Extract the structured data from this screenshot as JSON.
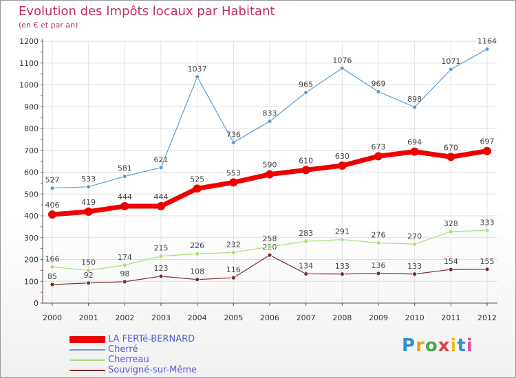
{
  "header": {
    "title": "Evolution des Impôts locaux par Habitant",
    "subtitle": "(en € et par an)"
  },
  "logo": {
    "text": "Proxiti",
    "colors": [
      "#2f8fd8",
      "#e8a020",
      "#4aa84a",
      "#d84040",
      "#e8c020",
      "#2f8fd8",
      "#e04f9a"
    ]
  },
  "chart_data": {
    "type": "line",
    "x": [
      2000,
      2001,
      2002,
      2003,
      2004,
      2005,
      2006,
      2007,
      2008,
      2009,
      2010,
      2011,
      2012
    ],
    "ylim": [
      0,
      1200
    ],
    "yticks": [
      0,
      100,
      200,
      300,
      400,
      500,
      600,
      700,
      800,
      900,
      1000,
      1100,
      1200
    ],
    "grid": true,
    "legend_position": "bottom-left",
    "series": [
      {
        "name": "LA FERTé-BERNARD",
        "color": "#ee0000",
        "values": [
          406,
          419,
          444,
          444,
          525,
          553,
          590,
          610,
          630,
          673,
          694,
          670,
          697
        ]
      },
      {
        "name": "Cherré",
        "color": "#5b9bd5",
        "values": [
          527,
          533,
          581,
          621,
          1037,
          736,
          833,
          965,
          1076,
          969,
          898,
          1071,
          1164
        ]
      },
      {
        "name": "Cherreau",
        "color": "#a6e07a",
        "values": [
          166,
          150,
          174,
          215,
          226,
          232,
          258,
          283,
          291,
          276,
          270,
          328,
          333
        ]
      },
      {
        "name": "Souvigné-sur-Même",
        "color": "#7a2a2a",
        "values": [
          85,
          92,
          98,
          123,
          108,
          116,
          220,
          134,
          133,
          136,
          133,
          154,
          155
        ]
      }
    ]
  }
}
